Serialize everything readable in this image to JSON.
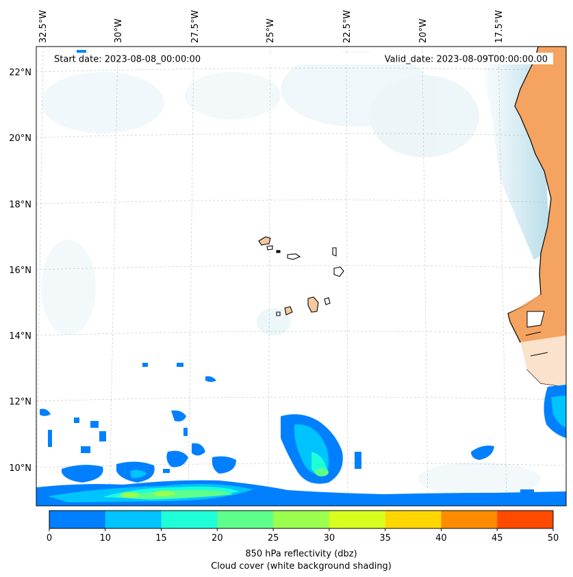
{
  "map": {
    "start_date": "Start date: 2023-08-08_00:00:00",
    "valid_date": "Valid_date: 2023-08-09T00:00:00.00",
    "lon_labels": [
      "32.5°W",
      "30°W",
      "27.5°W",
      "25°W",
      "22.5°W",
      "20°W",
      "17.5°W"
    ],
    "lat_labels": [
      "22°N",
      "20°N",
      "18°N",
      "16°N",
      "14°N",
      "12°N",
      "10°N"
    ],
    "colorbar": {
      "ticks": [
        "0",
        "10",
        "15",
        "20",
        "25",
        "30",
        "35",
        "40",
        "45",
        "50"
      ],
      "colors": [
        "#0080ff",
        "#00c4ff",
        "#1effd8",
        "#5fff8c",
        "#9bff50",
        "#d7ff1e",
        "#ffd700",
        "#ff8c00",
        "#ff4a00"
      ],
      "label_line1": "850 hPa reflectivity (dbz)",
      "label_line2": "Cloud cover (white background shading)"
    },
    "land_color": "#f4a460",
    "cloud_shade": "#add8e6"
  }
}
